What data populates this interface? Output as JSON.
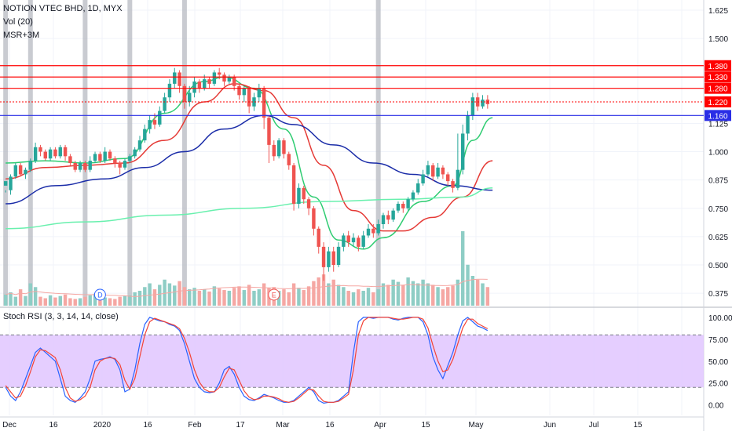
{
  "header": {
    "symbol_line": "NOTION VTEC BHD, 1D, MYX",
    "indicator_1": "Vol (20)",
    "indicator_2": "MSR+3M"
  },
  "stoch_panel": {
    "title": "Stoch RSI (3, 3, 14, 14, close)"
  },
  "colors": {
    "up": "#26a69a",
    "down": "#ef5350",
    "up_vol": "#8ecdc5",
    "down_vol": "#f5a7a3",
    "resistance": "#ff0000",
    "support": "#2a2ee6",
    "ma_fast": "#2ecc71",
    "ma_mid": "#e53935",
    "ma_slow": "#1a2ca8",
    "ma_long": "#69f0ae",
    "stoch_k": "#2962ff",
    "stoch_d": "#f44336",
    "band_fill": "#e0c6ff",
    "session_marker": "#b2b5be"
  },
  "chart_data": [
    {
      "type": "candlestick",
      "title": "NOTION VTEC BHD, 1D, MYX",
      "x_tick_labels": [
        "Dec",
        "16",
        "2020",
        "16",
        "Feb",
        "17",
        "Mar",
        "16",
        "Apr",
        "15",
        "May",
        "Jun",
        "Jul",
        "15"
      ],
      "y_tick_labels": [
        "1.625",
        "1.500",
        "1.125",
        "1.000",
        "0.875",
        "0.750",
        "0.625",
        "0.500",
        "0.375"
      ],
      "ylim": [
        0.32,
        1.67
      ],
      "horizontal_levels": [
        {
          "value": 1.38,
          "label": "1.380",
          "color": "#ff0000"
        },
        {
          "value": 1.33,
          "label": "1.330",
          "color": "#ff0000"
        },
        {
          "value": 1.28,
          "label": "1.280",
          "color": "#ff0000"
        },
        {
          "value": 1.22,
          "label": "1.220",
          "color": "#ff0000",
          "style": "dotted"
        },
        {
          "value": 1.16,
          "label": "1.160",
          "color": "#2a2ee6"
        }
      ],
      "event_markers": [
        {
          "label": "D",
          "bar": 19
        },
        {
          "label": "E",
          "bar": 54
        }
      ],
      "session_markers": [
        0,
        5,
        16,
        25,
        36,
        75
      ],
      "candles": [
        [
          0.85,
          0.87,
          0.83,
          0.82
        ],
        [
          0.83,
          0.89,
          0.9,
          0.81
        ],
        [
          0.89,
          0.94,
          0.95,
          0.88
        ],
        [
          0.94,
          0.9,
          0.95,
          0.89
        ],
        [
          0.9,
          0.92,
          0.93,
          0.88
        ],
        [
          0.92,
          0.96,
          0.97,
          0.91
        ],
        [
          0.96,
          1.02,
          1.04,
          0.95
        ],
        [
          1.02,
          1.0,
          1.03,
          0.98
        ],
        [
          1.0,
          0.97,
          1.01,
          0.96
        ],
        [
          0.97,
          1.01,
          1.02,
          0.96
        ],
        [
          1.01,
          0.98,
          1.02,
          0.97
        ],
        [
          0.98,
          1.02,
          1.03,
          0.97
        ],
        [
          1.02,
          0.98,
          1.03,
          0.96
        ],
        [
          0.98,
          0.95,
          0.99,
          0.94
        ],
        [
          0.95,
          0.92,
          0.96,
          0.91
        ],
        [
          0.92,
          0.95,
          0.96,
          0.91
        ],
        [
          0.95,
          0.92,
          0.96,
          0.91
        ],
        [
          0.92,
          0.96,
          0.98,
          0.91
        ],
        [
          0.96,
          0.99,
          1.0,
          0.95
        ],
        [
          0.99,
          0.96,
          1.0,
          0.95
        ],
        [
          0.96,
          1.0,
          1.02,
          0.95
        ],
        [
          1.0,
          0.97,
          1.01,
          0.96
        ],
        [
          0.97,
          0.95,
          0.98,
          0.93
        ],
        [
          0.95,
          0.93,
          0.96,
          0.9
        ],
        [
          0.93,
          0.96,
          0.97,
          0.92
        ],
        [
          0.96,
          0.98,
          0.99,
          0.95
        ],
        [
          0.98,
          1.01,
          1.02,
          0.97
        ],
        [
          1.01,
          1.05,
          1.07,
          1.0
        ],
        [
          1.05,
          1.1,
          1.12,
          1.04
        ],
        [
          1.1,
          1.14,
          1.16,
          1.08
        ],
        [
          1.14,
          1.12,
          1.17,
          1.1
        ],
        [
          1.12,
          1.18,
          1.2,
          1.11
        ],
        [
          1.18,
          1.24,
          1.26,
          1.17
        ],
        [
          1.24,
          1.3,
          1.32,
          1.22
        ],
        [
          1.3,
          1.35,
          1.37,
          1.28
        ],
        [
          1.35,
          1.29,
          1.36,
          1.26
        ],
        [
          1.29,
          1.22,
          1.3,
          1.19
        ],
        [
          1.22,
          1.26,
          1.29,
          1.2
        ],
        [
          1.26,
          1.31,
          1.33,
          1.24
        ],
        [
          1.31,
          1.28,
          1.32,
          1.26
        ],
        [
          1.28,
          1.32,
          1.34,
          1.27
        ],
        [
          1.32,
          1.3,
          1.33,
          1.28
        ],
        [
          1.3,
          1.35,
          1.36,
          1.29
        ],
        [
          1.35,
          1.34,
          1.37,
          1.32
        ],
        [
          1.34,
          1.31,
          1.35,
          1.29
        ],
        [
          1.31,
          1.33,
          1.34,
          1.3
        ],
        [
          1.33,
          1.29,
          1.34,
          1.27
        ],
        [
          1.29,
          1.25,
          1.3,
          1.23
        ],
        [
          1.25,
          1.28,
          1.29,
          1.22
        ],
        [
          1.28,
          1.2,
          1.29,
          1.17
        ],
        [
          1.2,
          1.24,
          1.26,
          1.18
        ],
        [
          1.24,
          1.28,
          1.3,
          1.22
        ],
        [
          1.28,
          1.15,
          1.29,
          1.1
        ],
        [
          1.15,
          1.03,
          1.16,
          0.95
        ],
        [
          1.03,
          0.98,
          1.05,
          0.96
        ],
        [
          0.98,
          1.05,
          1.06,
          0.97
        ],
        [
          1.05,
          0.99,
          1.06,
          0.97
        ],
        [
          0.99,
          0.94,
          1.0,
          0.92
        ],
        [
          0.94,
          0.77,
          0.95,
          0.74
        ],
        [
          0.77,
          0.84,
          0.86,
          0.75
        ],
        [
          0.84,
          0.79,
          0.85,
          0.77
        ],
        [
          0.79,
          0.75,
          0.8,
          0.72
        ],
        [
          0.75,
          0.66,
          0.76,
          0.63
        ],
        [
          0.66,
          0.58,
          0.67,
          0.55
        ],
        [
          0.58,
          0.49,
          0.6,
          0.43
        ],
        [
          0.49,
          0.56,
          0.58,
          0.47
        ],
        [
          0.56,
          0.5,
          0.58,
          0.47
        ],
        [
          0.5,
          0.58,
          0.6,
          0.49
        ],
        [
          0.58,
          0.63,
          0.64,
          0.56
        ],
        [
          0.63,
          0.6,
          0.65,
          0.58
        ],
        [
          0.6,
          0.62,
          0.64,
          0.58
        ],
        [
          0.62,
          0.58,
          0.63,
          0.56
        ],
        [
          0.58,
          0.63,
          0.65,
          0.57
        ],
        [
          0.63,
          0.66,
          0.68,
          0.62
        ],
        [
          0.66,
          0.64,
          0.68,
          0.62
        ],
        [
          0.64,
          0.68,
          0.7,
          0.63
        ],
        [
          0.68,
          0.72,
          0.73,
          0.66
        ],
        [
          0.72,
          0.7,
          0.74,
          0.68
        ],
        [
          0.7,
          0.74,
          0.75,
          0.69
        ],
        [
          0.74,
          0.77,
          0.78,
          0.73
        ],
        [
          0.77,
          0.75,
          0.78,
          0.73
        ],
        [
          0.75,
          0.79,
          0.8,
          0.74
        ],
        [
          0.79,
          0.82,
          0.83,
          0.78
        ],
        [
          0.82,
          0.86,
          0.88,
          0.81
        ],
        [
          0.86,
          0.9,
          0.92,
          0.85
        ],
        [
          0.9,
          0.94,
          0.96,
          0.89
        ],
        [
          0.94,
          0.89,
          0.95,
          0.87
        ],
        [
          0.89,
          0.93,
          0.95,
          0.88
        ],
        [
          0.93,
          0.9,
          0.94,
          0.88
        ],
        [
          0.9,
          0.87,
          0.91,
          0.85
        ],
        [
          0.87,
          0.84,
          0.88,
          0.82
        ],
        [
          0.84,
          0.92,
          1.08,
          0.83
        ],
        [
          0.92,
          1.08,
          1.12,
          0.9
        ],
        [
          1.08,
          1.16,
          1.18,
          1.05
        ],
        [
          1.16,
          1.24,
          1.26,
          1.14
        ],
        [
          1.24,
          1.2,
          1.26,
          1.18
        ],
        [
          1.2,
          1.23,
          1.25,
          1.19
        ],
        [
          1.23,
          1.21,
          1.25,
          1.19
        ]
      ],
      "volume_relative": [
        0.15,
        0.18,
        0.12,
        0.22,
        0.13,
        0.3,
        0.25,
        0.12,
        0.1,
        0.14,
        0.11,
        0.13,
        0.15,
        0.1,
        0.09,
        0.1,
        0.12,
        0.14,
        0.16,
        0.12,
        0.11,
        0.1,
        0.09,
        0.12,
        0.13,
        0.14,
        0.18,
        0.2,
        0.25,
        0.3,
        0.22,
        0.28,
        0.35,
        0.3,
        0.27,
        0.33,
        0.25,
        0.22,
        0.24,
        0.2,
        0.22,
        0.19,
        0.26,
        0.23,
        0.21,
        0.2,
        0.24,
        0.26,
        0.21,
        0.28,
        0.2,
        0.22,
        0.3,
        0.24,
        0.25,
        0.2,
        0.22,
        0.18,
        0.3,
        0.24,
        0.21,
        0.26,
        0.33,
        0.38,
        0.42,
        0.3,
        0.35,
        0.28,
        0.25,
        0.2,
        0.18,
        0.22,
        0.2,
        0.24,
        0.18,
        0.22,
        0.3,
        0.28,
        0.35,
        0.32,
        0.28,
        0.38,
        0.33,
        0.3,
        0.35,
        0.3,
        0.28,
        0.25,
        0.22,
        0.25,
        0.27,
        0.35,
        1.0,
        0.55,
        0.4,
        0.35,
        0.3,
        0.25
      ],
      "moving_averages": [
        {
          "name": "MA fast",
          "color": "#2ecc71",
          "points": [
            [
              0,
              0.95
            ],
            [
              8,
              0.96
            ],
            [
              16,
              0.95
            ],
            [
              24,
              0.97
            ],
            [
              32,
              1.17
            ],
            [
              40,
              1.31
            ],
            [
              44,
              1.33
            ],
            [
              50,
              1.28
            ],
            [
              56,
              1.1
            ],
            [
              62,
              0.8
            ],
            [
              67,
              0.61
            ],
            [
              72,
              0.57
            ],
            [
              76,
              0.62
            ],
            [
              84,
              0.78
            ],
            [
              90,
              0.85
            ],
            [
              94,
              1.05
            ],
            [
              98,
              1.15
            ]
          ]
        },
        {
          "name": "MA mid",
          "color": "#e53935",
          "points": [
            [
              0,
              0.88
            ],
            [
              8,
              0.93
            ],
            [
              16,
              0.94
            ],
            [
              24,
              0.95
            ],
            [
              32,
              1.05
            ],
            [
              40,
              1.22
            ],
            [
              46,
              1.3
            ],
            [
              52,
              1.27
            ],
            [
              58,
              1.15
            ],
            [
              64,
              0.94
            ],
            [
              70,
              0.74
            ],
            [
              76,
              0.65
            ],
            [
              80,
              0.65
            ],
            [
              86,
              0.71
            ],
            [
              92,
              0.8
            ],
            [
              98,
              0.96
            ]
          ]
        },
        {
          "name": "MA slow",
          "color": "#1a2ca8",
          "points": [
            [
              0,
              0.77
            ],
            [
              10,
              0.85
            ],
            [
              20,
              0.88
            ],
            [
              28,
              0.93
            ],
            [
              36,
              1.0
            ],
            [
              44,
              1.1
            ],
            [
              52,
              1.16
            ],
            [
              58,
              1.12
            ],
            [
              66,
              1.03
            ],
            [
              74,
              0.95
            ],
            [
              82,
              0.9
            ],
            [
              90,
              0.85
            ],
            [
              98,
              0.83
            ]
          ]
        },
        {
          "name": "MA long",
          "color": "#69f0ae",
          "points": [
            [
              0,
              0.66
            ],
            [
              16,
              0.69
            ],
            [
              32,
              0.72
            ],
            [
              48,
              0.75
            ],
            [
              64,
              0.78
            ],
            [
              80,
              0.79
            ],
            [
              92,
              0.8
            ],
            [
              98,
              0.84
            ]
          ]
        }
      ]
    },
    {
      "type": "line",
      "title": "Stoch RSI (3, 3, 14, 14, close)",
      "y_tick_labels": [
        "100.00",
        "75.00",
        "50.00",
        "25.00",
        "0.00"
      ],
      "ylim": [
        -12,
        108
      ],
      "band": [
        20,
        80
      ],
      "series": [
        {
          "name": "K",
          "color": "#2962ff",
          "values": [
            20,
            10,
            5,
            15,
            30,
            45,
            60,
            65,
            60,
            55,
            50,
            30,
            10,
            5,
            3,
            8,
            15,
            30,
            50,
            52,
            53,
            55,
            52,
            40,
            15,
            18,
            40,
            70,
            92,
            100,
            98,
            96,
            95,
            92,
            90,
            85,
            70,
            50,
            30,
            20,
            15,
            14,
            15,
            25,
            40,
            44,
            35,
            20,
            10,
            6,
            5,
            8,
            12,
            10,
            8,
            5,
            3,
            3,
            5,
            10,
            15,
            20,
            15,
            5,
            2,
            3,
            3,
            5,
            10,
            15,
            60,
            95,
            100,
            100,
            99,
            100,
            100,
            100,
            98,
            97,
            99,
            100,
            100,
            100,
            95,
            80,
            55,
            40,
            30,
            45,
            60,
            80,
            96,
            100,
            95,
            90,
            88,
            85
          ]
        },
        {
          "name": "D",
          "color": "#f44336",
          "values": [
            22,
            15,
            8,
            10,
            22,
            38,
            55,
            63,
            62,
            58,
            54,
            40,
            20,
            8,
            4,
            6,
            10,
            20,
            40,
            50,
            53,
            54,
            53,
            46,
            28,
            18,
            30,
            55,
            80,
            95,
            99,
            97,
            95,
            93,
            91,
            87,
            76,
            60,
            40,
            26,
            18,
            15,
            15,
            20,
            32,
            42,
            40,
            28,
            16,
            9,
            6,
            7,
            10,
            10,
            9,
            7,
            4,
            3,
            4,
            8,
            13,
            18,
            17,
            10,
            4,
            3,
            3,
            4,
            8,
            12,
            40,
            80,
            96,
            100,
            100,
            100,
            100,
            100,
            99,
            98,
            98,
            99,
            100,
            100,
            98,
            88,
            68,
            50,
            38,
            40,
            52,
            70,
            88,
            98,
            98,
            93,
            90,
            87
          ]
        }
      ]
    }
  ]
}
